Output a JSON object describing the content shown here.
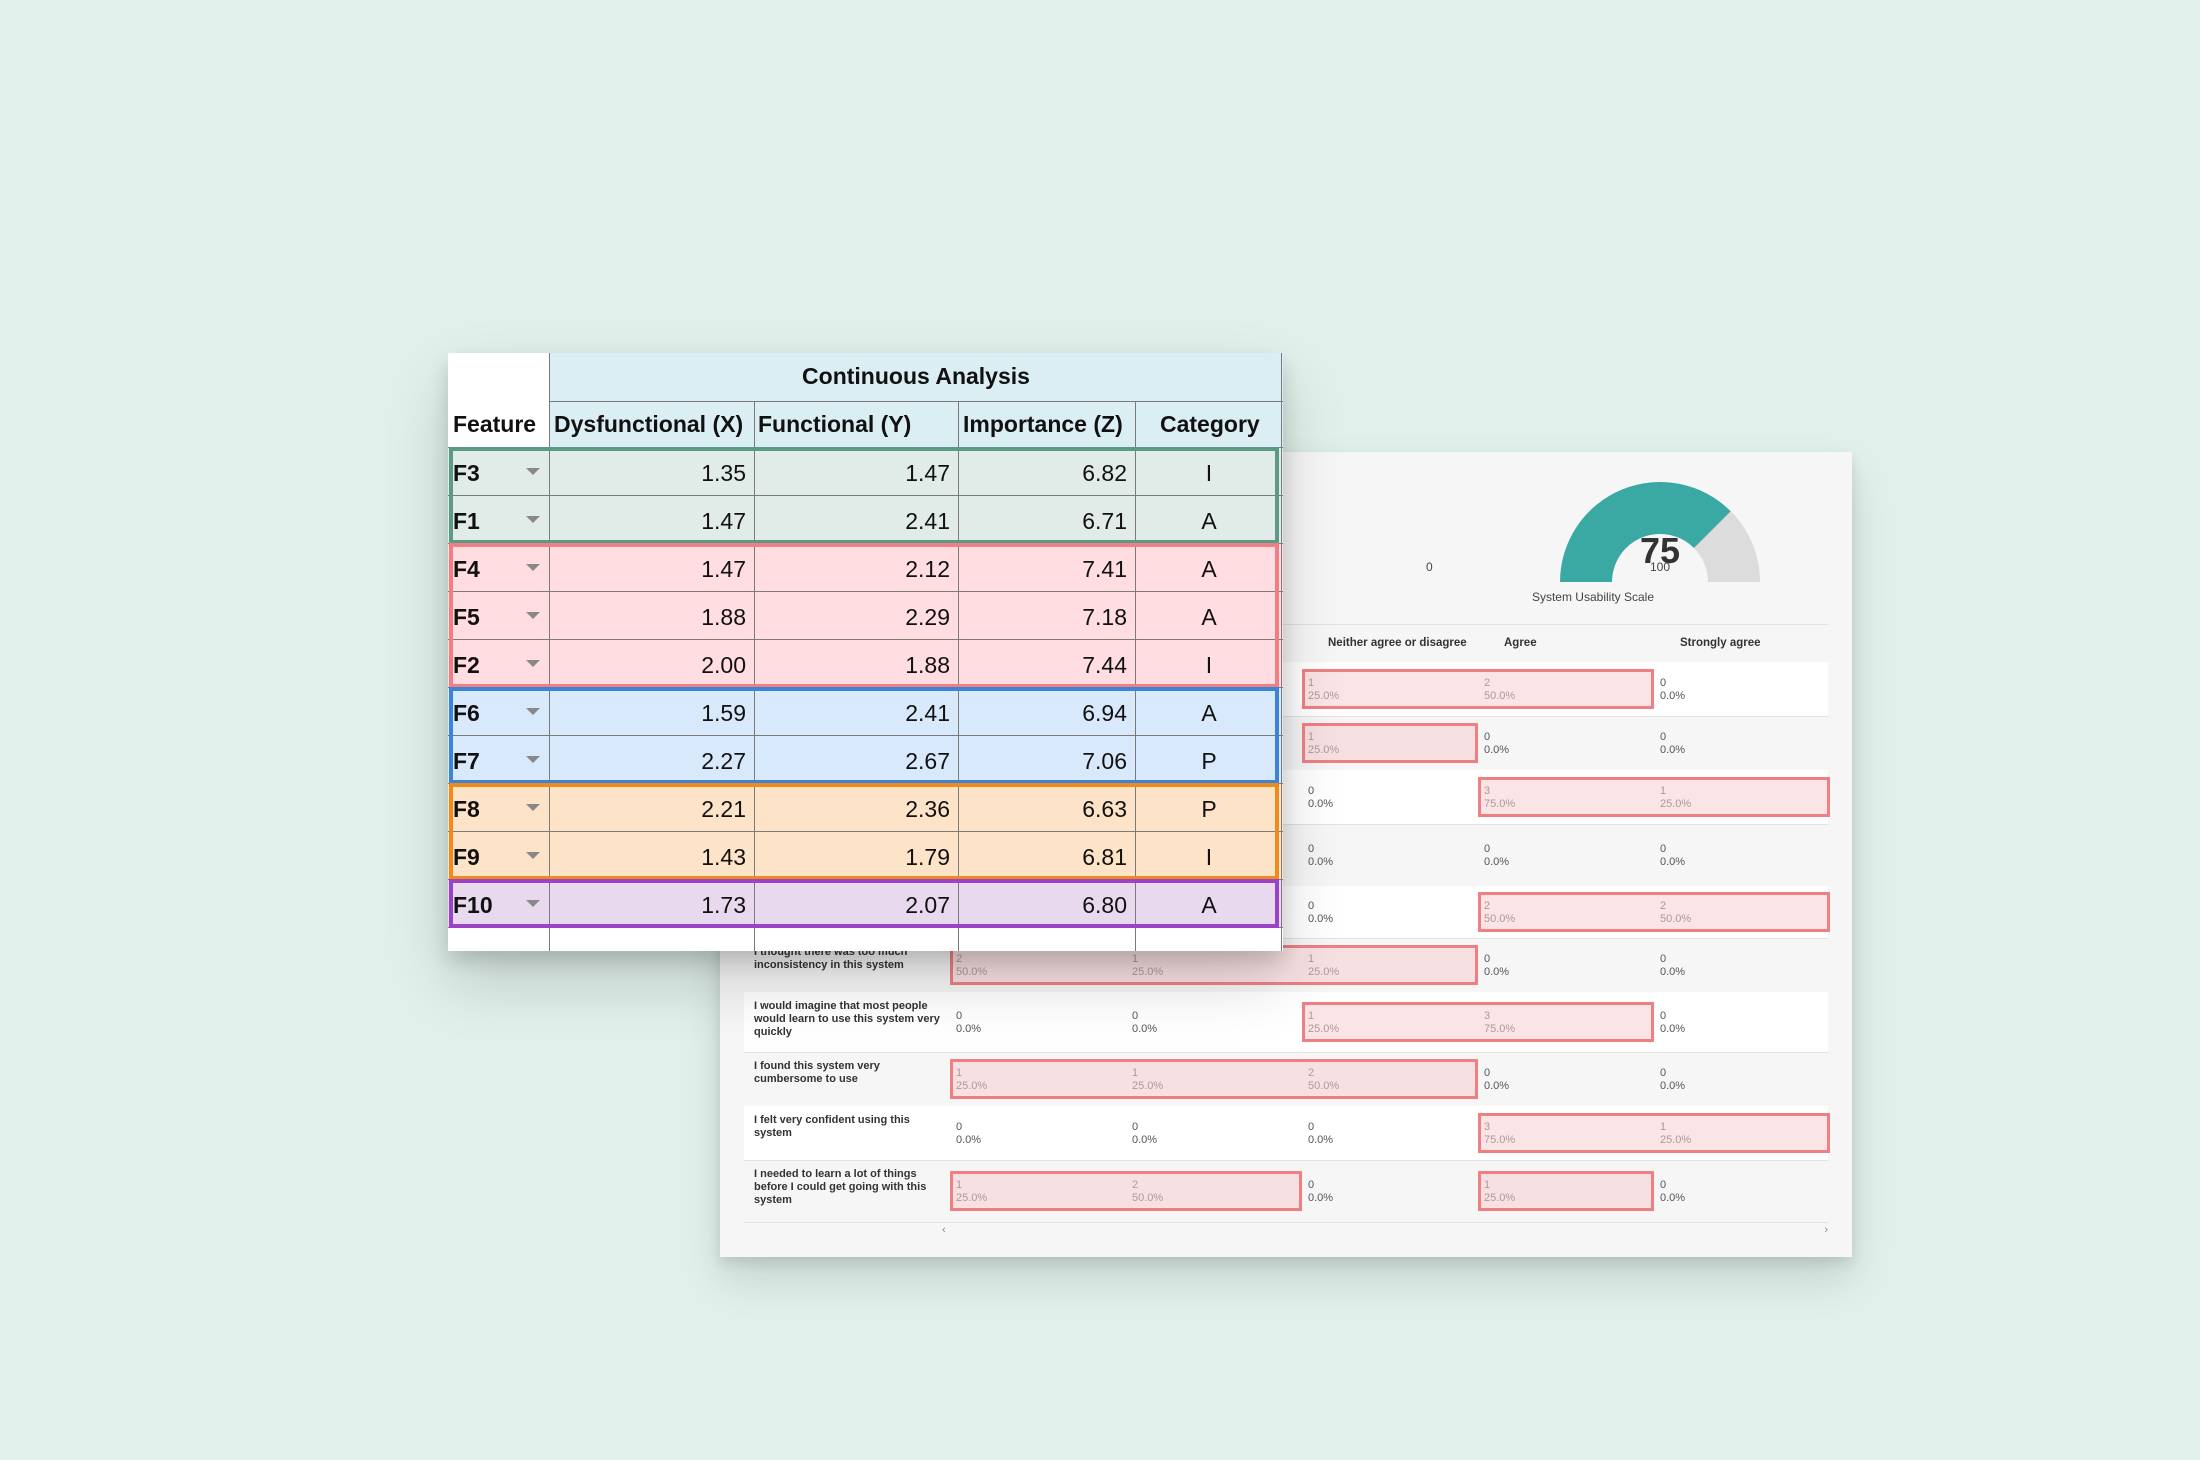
{
  "continuous_analysis": {
    "title": "Continuous Analysis",
    "columns": [
      "Feature",
      "Dysfunctional (X)",
      "Functional (Y)",
      "Importance (Z)",
      "Category"
    ],
    "rows": [
      {
        "feature": "F3",
        "x": "1.35",
        "y": "1.47",
        "z": "6.82",
        "category": "I",
        "group": "teal"
      },
      {
        "feature": "F1",
        "x": "1.47",
        "y": "2.41",
        "z": "6.71",
        "category": "A",
        "group": "teal"
      },
      {
        "feature": "F4",
        "x": "1.47",
        "y": "2.12",
        "z": "7.41",
        "category": "A",
        "group": "red"
      },
      {
        "feature": "F5",
        "x": "1.88",
        "y": "2.29",
        "z": "7.18",
        "category": "A",
        "group": "red"
      },
      {
        "feature": "F2",
        "x": "2.00",
        "y": "1.88",
        "z": "7.44",
        "category": "I",
        "group": "red"
      },
      {
        "feature": "F6",
        "x": "1.59",
        "y": "2.41",
        "z": "6.94",
        "category": "A",
        "group": "blue"
      },
      {
        "feature": "F7",
        "x": "2.27",
        "y": "2.67",
        "z": "7.06",
        "category": "P",
        "group": "blue"
      },
      {
        "feature": "F8",
        "x": "2.21",
        "y": "2.36",
        "z": "6.63",
        "category": "P",
        "group": "orange"
      },
      {
        "feature": "F9",
        "x": "1.43",
        "y": "1.79",
        "z": "6.81",
        "category": "I",
        "group": "orange"
      },
      {
        "feature": "F10",
        "x": "1.73",
        "y": "2.07",
        "z": "6.80",
        "category": "A",
        "group": "purple"
      }
    ],
    "group_colors": {
      "teal": {
        "border": "#5a9a86",
        "fill": "#e1ebe7"
      },
      "red": {
        "border": "#f07f84",
        "fill": "#ffdde0"
      },
      "blue": {
        "border": "#3d84d6",
        "fill": "#d8e9fb"
      },
      "orange": {
        "border": "#ef8a1d",
        "fill": "#fde3c7"
      },
      "purple": {
        "border": "#9b42c6",
        "fill": "#e8d9ee"
      }
    }
  },
  "sus": {
    "score": 75,
    "min_label": "0",
    "max_label": "100",
    "fill_fraction": 0.75,
    "gauge_color": "#3aa9a4",
    "gauge_track_color": "#dcdcdc",
    "scale_label": "System Usability Scale",
    "headers": [
      "Neither agree or disagree",
      "Agree",
      "Strongly agree"
    ],
    "rows": [
      {
        "statement": "",
        "cells": [
          [
            "1",
            "25.0%"
          ],
          [
            "2",
            "50.0%"
          ],
          [
            "0",
            "0.0%"
          ]
        ]
      },
      {
        "statement": "",
        "cells": [
          [
            "1",
            "25.0%"
          ],
          [
            "0",
            "0.0%"
          ],
          [
            "0",
            "0.0%"
          ]
        ]
      },
      {
        "statement": "",
        "cells": [
          [
            "0",
            "0.0%"
          ],
          [
            "3",
            "75.0%"
          ],
          [
            "1",
            "25.0%"
          ]
        ]
      },
      {
        "statement": "",
        "cells": [
          [
            "0",
            "0.0%"
          ],
          [
            "0",
            "0.0%"
          ],
          [
            "0",
            "0.0%"
          ]
        ]
      },
      {
        "statement": "",
        "cells": [
          [
            "0",
            "0.0%"
          ],
          [
            "2",
            "50.0%"
          ],
          [
            "2",
            "50.0%"
          ]
        ]
      },
      {
        "statement": "I thought there was too much inconsistency in this system",
        "cells": [
          [
            "2",
            "50.0%"
          ],
          [
            "1",
            "25.0%"
          ],
          [
            "1",
            "25.0%"
          ],
          [
            "0",
            "0.0%"
          ],
          [
            "0",
            "0.0%"
          ]
        ]
      },
      {
        "statement": "I would imagine that most people would learn to use this system very quickly",
        "cells": [
          [
            "0",
            "0.0%"
          ],
          [
            "0",
            "0.0%"
          ],
          [
            "1",
            "25.0%"
          ],
          [
            "3",
            "75.0%"
          ],
          [
            "0",
            "0.0%"
          ]
        ]
      },
      {
        "statement": "I found this system very cumbersome to use",
        "cells": [
          [
            "1",
            "25.0%"
          ],
          [
            "1",
            "25.0%"
          ],
          [
            "2",
            "50.0%"
          ],
          [
            "0",
            "0.0%"
          ],
          [
            "0",
            "0.0%"
          ]
        ]
      },
      {
        "statement": "I felt very confident using this system",
        "cells": [
          [
            "0",
            "0.0%"
          ],
          [
            "0",
            "0.0%"
          ],
          [
            "0",
            "0.0%"
          ],
          [
            "3",
            "75.0%"
          ],
          [
            "1",
            "25.0%"
          ]
        ]
      },
      {
        "statement": "I needed to learn a lot of things before I could get going with this system",
        "cells": [
          [
            "1",
            "25.0%"
          ],
          [
            "2",
            "50.0%"
          ],
          [
            "0",
            "0.0%"
          ],
          [
            "1",
            "25.0%"
          ],
          [
            "0",
            "0.0%"
          ]
        ]
      }
    ],
    "scroll_left": "‹",
    "scroll_right": "›"
  }
}
